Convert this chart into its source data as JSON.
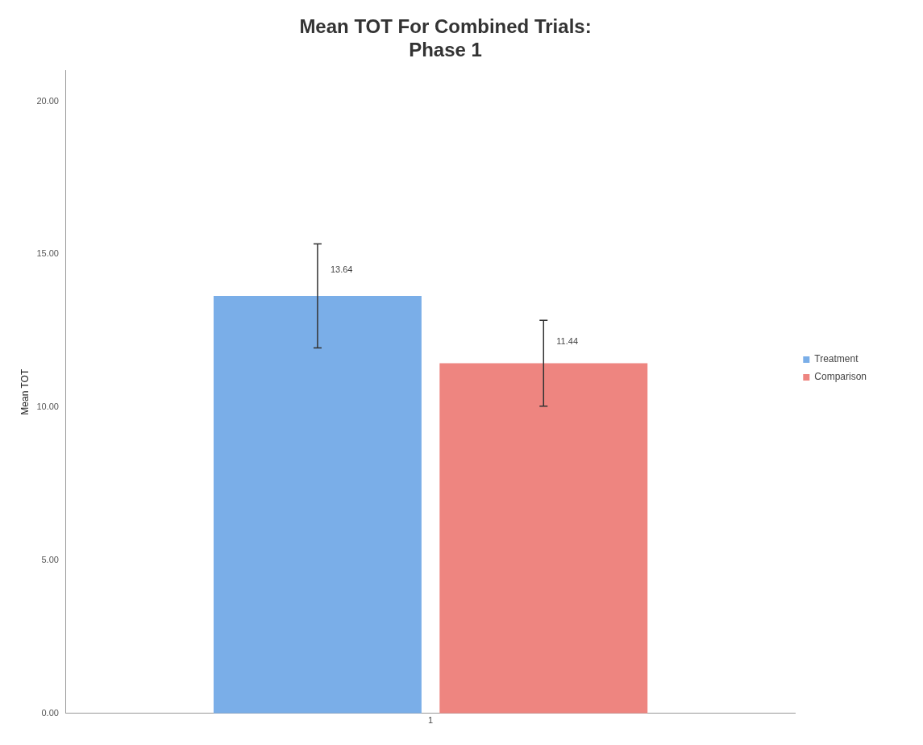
{
  "chart_data": {
    "type": "bar",
    "title": "Mean TOT For Combined Trials:\nPhase 1",
    "ylabel": "Mean TOT",
    "categories": [
      "1"
    ],
    "series": [
      {
        "name": "Treatment",
        "color": "#7aaee8",
        "values": [
          13.64
        ],
        "errors": [
          1.7
        ]
      },
      {
        "name": "Comparison",
        "color": "#ee8580",
        "values": [
          11.44
        ],
        "errors": [
          1.4
        ]
      }
    ],
    "ylim": [
      0,
      21
    ],
    "yticks": [
      {
        "value": 0,
        "label": "0.00"
      },
      {
        "value": 5,
        "label": "5.00"
      },
      {
        "value": 10,
        "label": "10.00"
      },
      {
        "value": 15,
        "label": "15.00"
      },
      {
        "value": 20,
        "label": "20.00"
      }
    ],
    "grid": false,
    "legend": "right",
    "data_labels": true
  }
}
